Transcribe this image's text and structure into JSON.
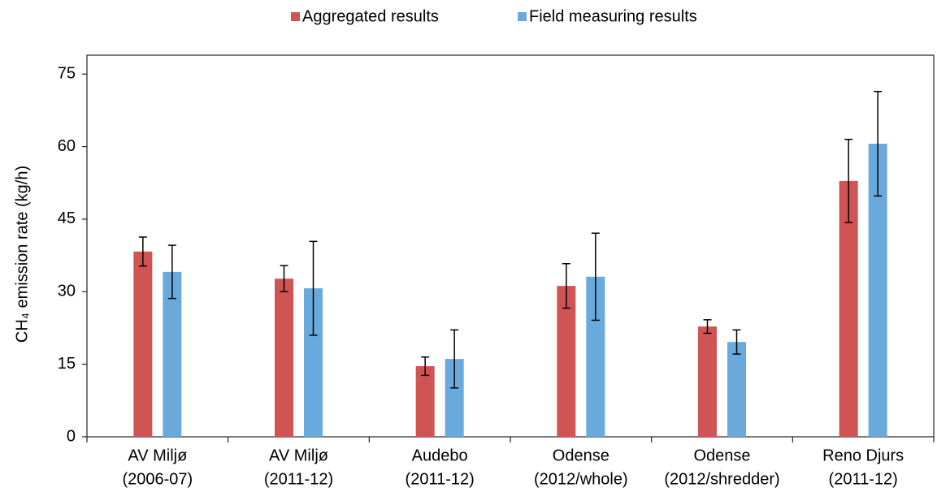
{
  "chart_data": {
    "type": "bar",
    "ylabel": "CH₄ emission rate (kg/h)",
    "categories": [
      [
        "AV Miljø",
        "(2006-07)"
      ],
      [
        "AV Miljø",
        "(2011-12)"
      ],
      [
        "Audebo",
        "(2011-12)"
      ],
      [
        "Odense",
        "(2012/whole)"
      ],
      [
        "Odense",
        "(2012/shredder)"
      ],
      [
        "Reno Djurs",
        "(2011-12)"
      ]
    ],
    "series": [
      {
        "name": "Aggregated results",
        "color": "#d05454",
        "values": [
          38.3,
          32.7,
          14.6,
          31.2,
          22.8,
          52.9
        ],
        "errors": [
          3.0,
          2.7,
          1.9,
          4.6,
          1.4,
          8.6
        ]
      },
      {
        "name": "Field measuring results",
        "color": "#6aa9dc",
        "values": [
          34.1,
          30.7,
          16.1,
          33.1,
          19.6,
          60.6
        ],
        "errors": [
          5.5,
          9.7,
          6.0,
          9.0,
          2.5,
          10.8
        ]
      }
    ],
    "ylim": [
      0,
      78.9
    ],
    "yticks": [
      0,
      15,
      30,
      45,
      60,
      75
    ]
  }
}
